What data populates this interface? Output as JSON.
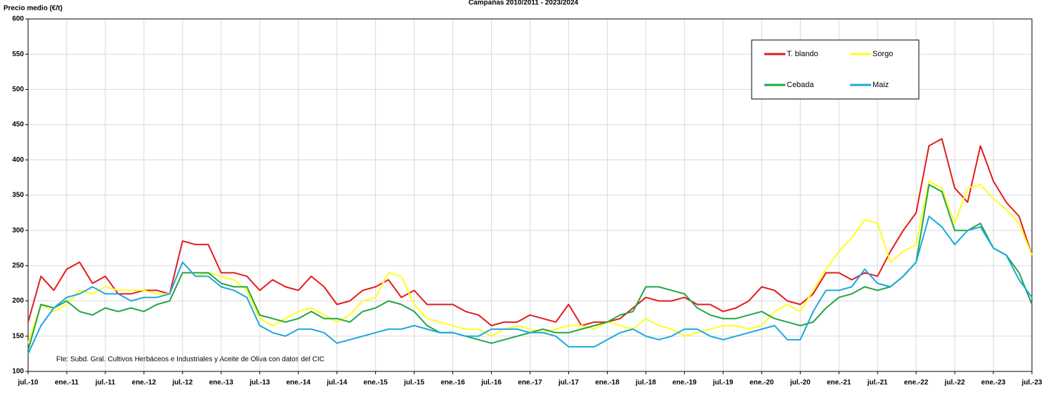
{
  "chart_data": {
    "type": "line",
    "title": "Campañas 2010/2011 - 2023/2024",
    "y_label": "Precio medio (€/t)",
    "note": "Fte: Subd. Gral. Cultivos Herbáceos e Industriales y Aceite de Oliva con datos del CIC",
    "categories": [
      "jul.-10",
      null,
      null,
      "ene.-11",
      null,
      null,
      "jul.-11",
      null,
      null,
      "ene.-12",
      null,
      null,
      "jul.-12",
      null,
      null,
      "ene.-13",
      null,
      null,
      "jul.-13",
      null,
      null,
      "ene.-14",
      null,
      null,
      "jul.-14",
      null,
      null,
      "ene.-15",
      null,
      null,
      "jul.-15",
      null,
      null,
      "ene.-16",
      null,
      null,
      "jul.-16",
      null,
      null,
      "ene.-17",
      null,
      null,
      "jul.-17",
      null,
      null,
      "ene.-18",
      null,
      null,
      "jul.-18",
      null,
      null,
      "ene.-19",
      null,
      null,
      "jul.-19",
      null,
      null,
      "ene.-20",
      null,
      null,
      "jul.-20",
      null,
      null,
      "ene.-21",
      null,
      null,
      "jul.-21",
      null,
      null,
      "ene.-22",
      null,
      null,
      "jul.-22",
      null,
      null,
      "ene.-23",
      null,
      null,
      "jul.-23"
    ],
    "series": [
      {
        "name": "T. blando",
        "color": "#e31a1c",
        "values": [
          170,
          235,
          215,
          245,
          255,
          225,
          235,
          210,
          210,
          215,
          215,
          210,
          285,
          280,
          280,
          240,
          240,
          235,
          215,
          230,
          220,
          215,
          235,
          220,
          195,
          200,
          215,
          220,
          230,
          205,
          215,
          195,
          195,
          195,
          185,
          180,
          165,
          170,
          170,
          180,
          175,
          170,
          195,
          165,
          170,
          170,
          175,
          190,
          205,
          200,
          200,
          205,
          195,
          195,
          185,
          190,
          200,
          220,
          215,
          200,
          195,
          210,
          240,
          240,
          230,
          240,
          235,
          270,
          300,
          325,
          420,
          430,
          360,
          340,
          420,
          370,
          340,
          320,
          265
        ]
      },
      {
        "name": "Sorgo",
        "color": "#ffff1a",
        "values": [
          140,
          195,
          185,
          195,
          215,
          210,
          220,
          215,
          215,
          215,
          210,
          210,
          255,
          235,
          240,
          235,
          230,
          215,
          175,
          165,
          175,
          185,
          190,
          180,
          170,
          180,
          200,
          205,
          240,
          235,
          195,
          175,
          170,
          165,
          160,
          160,
          150,
          160,
          165,
          160,
          155,
          160,
          165,
          165,
          160,
          170,
          165,
          160,
          175,
          165,
          160,
          150,
          155,
          160,
          165,
          165,
          160,
          165,
          185,
          195,
          185,
          215,
          245,
          270,
          290,
          315,
          310,
          255,
          270,
          280,
          370,
          360,
          310,
          360,
          365,
          345,
          330,
          310,
          265
        ]
      },
      {
        "name": "Cebada",
        "color": "#1fa544",
        "values": [
          130,
          195,
          190,
          200,
          185,
          180,
          190,
          185,
          190,
          185,
          195,
          200,
          240,
          240,
          240,
          225,
          220,
          220,
          180,
          175,
          170,
          175,
          185,
          175,
          175,
          170,
          185,
          190,
          200,
          195,
          185,
          165,
          155,
          155,
          150,
          145,
          140,
          145,
          150,
          155,
          160,
          155,
          155,
          160,
          165,
          170,
          180,
          185,
          220,
          220,
          215,
          210,
          190,
          180,
          175,
          175,
          180,
          185,
          175,
          170,
          165,
          170,
          190,
          205,
          210,
          220,
          215,
          220,
          235,
          255,
          365,
          355,
          300,
          300,
          310,
          275,
          265,
          240,
          195
        ]
      },
      {
        "name": "Maiz",
        "color": "#1ba7e0",
        "values": [
          125,
          165,
          190,
          205,
          210,
          220,
          210,
          210,
          200,
          205,
          205,
          210,
          255,
          235,
          235,
          220,
          215,
          205,
          165,
          155,
          150,
          160,
          160,
          155,
          140,
          145,
          150,
          155,
          160,
          160,
          165,
          160,
          155,
          155,
          150,
          150,
          160,
          160,
          160,
          155,
          155,
          150,
          135,
          135,
          135,
          145,
          155,
          160,
          150,
          145,
          150,
          160,
          160,
          150,
          145,
          150,
          155,
          160,
          165,
          145,
          145,
          185,
          215,
          215,
          220,
          245,
          225,
          220,
          235,
          255,
          320,
          305,
          280,
          300,
          305,
          275,
          265,
          230,
          205
        ]
      }
    ],
    "ylim": [
      100,
      600
    ],
    "yticks": [
      100,
      150,
      200,
      250,
      300,
      350,
      400,
      450,
      500,
      550,
      600
    ],
    "grid": true
  }
}
